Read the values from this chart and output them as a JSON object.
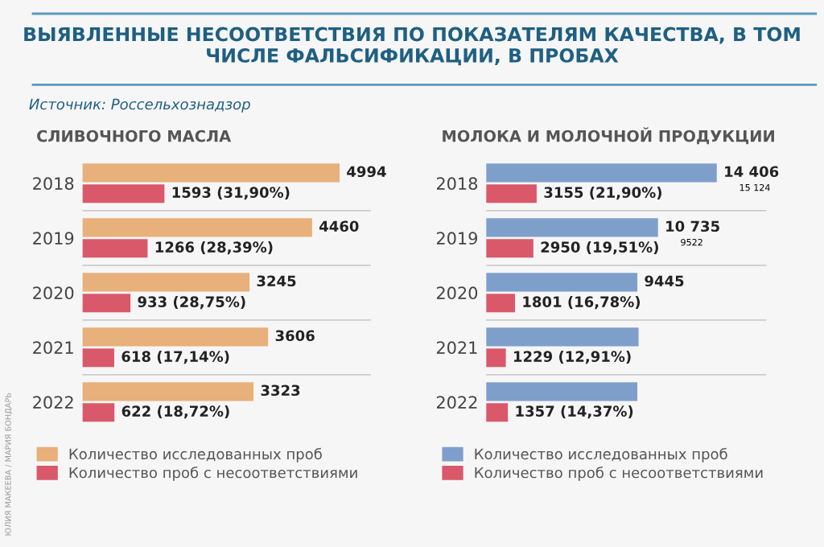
{
  "chart_data": [
    {
      "type": "bar",
      "orientation": "horizontal",
      "title": "ВЫЯВЛЕННЫЕ НЕСООТВЕТСТВИЯ ПО ПОКАЗАТЕЛЯМ КАЧЕСТВА, В ТОМ ЧИСЛЕ ФАЛЬСИФИКАЦИИ, В ПРОБАХ",
      "subtitle": "СЛИВОЧНОГО МАСЛА",
      "annotations": [
        "Источник: Россельхознадзор",
        "ЮЛИЯ МАКЕЕВА / МАРИЯ БОНДАРЬ"
      ],
      "categories": [
        "2018",
        "2019",
        "2020",
        "2021",
        "2022"
      ],
      "series": [
        {
          "name": "Количество исследованных проб",
          "color": "#e8b07a",
          "values": [
            4994,
            4460,
            3245,
            3606,
            3323
          ],
          "value_labels": [
            "4994",
            "4460",
            "3245",
            "3606",
            "3323"
          ]
        },
        {
          "name": "Количество проб с несоответствиями",
          "color": "#d9596a",
          "values": [
            1593,
            1266,
            933,
            618,
            622
          ],
          "value_labels": [
            "1593 (31,90%)",
            "1266 (28,39%)",
            "933 (28,75%)",
            "618 (17,14%)",
            "622 (18,72%)"
          ]
        }
      ],
      "xlim": [
        0,
        5600
      ],
      "tick_labels": "y",
      "legend": "bottom"
    },
    {
      "type": "bar",
      "orientation": "horizontal",
      "subtitle": "МОЛОКА И МОЛОЧНОЙ ПРОДУКЦИИ",
      "annotations": [
        {
          "text": "15 124",
          "x": 14406,
          "y": "2018"
        },
        {
          "text": "9522",
          "x": 10735,
          "y": "2019"
        }
      ],
      "categories": [
        "2018",
        "2019",
        "2020",
        "2021",
        "2022"
      ],
      "series": [
        {
          "name": "Количество исследованных проб",
          "color": "#7f9fcb",
          "values": [
            14406,
            10735,
            9445,
            9520,
            9443
          ],
          "value_labels": [
            "14 406",
            "10 735",
            "9445",
            null,
            null
          ]
        },
        {
          "name": "Количество проб с несоответствиями",
          "color": "#d9596a",
          "values": [
            3155,
            2950,
            1801,
            1229,
            1357
          ],
          "value_labels": [
            "3155 (21,90%)",
            "2950 (19,51%)",
            "1801 (16,78%)",
            "1229 (12,91%)",
            "1357 (14,37%)"
          ]
        }
      ],
      "xlim": [
        0,
        17500
      ],
      "tick_labels": "y",
      "legend": "bottom"
    }
  ]
}
